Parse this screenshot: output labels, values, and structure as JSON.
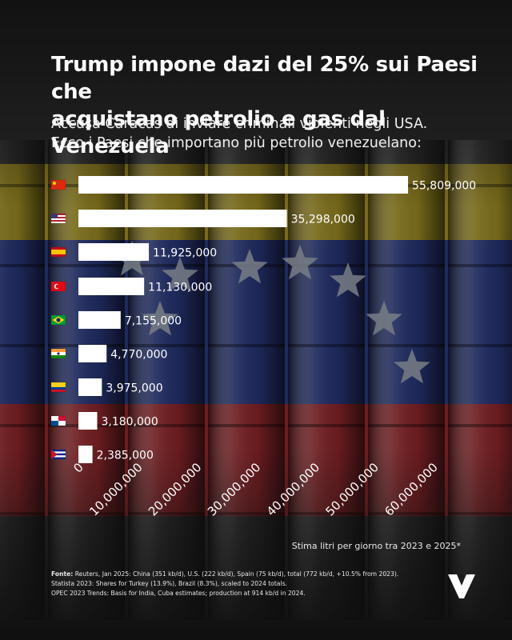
{
  "title_line1": "Trump impone dazi del 25% sui Paesi che",
  "title_line2": "acquistano petrolio e gas dal Venezuela",
  "subtitle_line1": "Accusa Caracas di inviare criminali violenti negli USA.",
  "subtitle_line2": "Ecco i Paesi che importano più petrolio venezuelano:",
  "caption": "Stima litri per giorno tra 2023 e 2025*",
  "sources": {
    "label": "Fonte:",
    "line1": " Reuters, Jan 2025: China (351 kb/d), U.S. (222 kb/d), Spain (75 kb/d), total (772 kb/d, +10.5% from 2023).",
    "line2": "Statista 2023: Shares for Turkey (13.9%), Brazil (8.3%), scaled to 2024 totals.",
    "line3": "OPEC 2023 Trends: Basis for India, Cuba estimates; production at 914 kb/d in 2024."
  },
  "colors": {
    "bar": "#ffffff",
    "text": "#ffffff",
    "flag_yellow": "#f2c200",
    "flag_blue": "#1d2c6b",
    "flag_red": "#b0262b"
  },
  "chart_data": {
    "type": "bar",
    "orientation": "horizontal",
    "categories": [
      "china-flag",
      "usa-flag",
      "spain-flag",
      "turkey-flag",
      "brazil-flag",
      "india-flag",
      "colombia-flag",
      "panama-flag",
      "cuba-flag"
    ],
    "values": [
      55809000,
      35298000,
      11925000,
      11130000,
      7155000,
      4770000,
      3975000,
      3180000,
      2385000
    ],
    "value_labels": [
      "55,809,000",
      "35,298,000",
      "11,925,000",
      "11,130,000",
      "7,155,000",
      "4,770,000",
      "3,975,000",
      "3,180,000",
      "2,385,000"
    ],
    "xlim": [
      0,
      60000000
    ],
    "xticks": [
      0,
      10000000,
      20000000,
      30000000,
      40000000,
      50000000,
      60000000
    ],
    "xtick_labels": [
      "0",
      "10,000,000",
      "20,000,000",
      "30,000,000",
      "40,000,000",
      "50,000,000",
      "60,000,000"
    ],
    "grid": false,
    "legend": "none"
  }
}
